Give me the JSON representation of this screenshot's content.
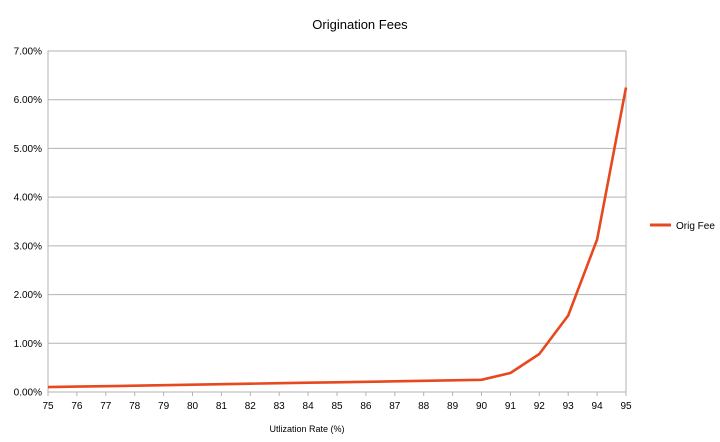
{
  "chart_data": {
    "type": "line",
    "title": "Origination Fees",
    "xlabel": "Utlization Rate (%)",
    "ylabel": "",
    "categories": [
      "75",
      "76",
      "77",
      "78",
      "79",
      "80",
      "81",
      "82",
      "83",
      "84",
      "85",
      "86",
      "87",
      "88",
      "89",
      "90",
      "91",
      "92",
      "93",
      "94",
      "95"
    ],
    "yticks": [
      "0.00%",
      "1.00%",
      "2.00%",
      "3.00%",
      "4.00%",
      "5.00%",
      "6.00%",
      "7.00%"
    ],
    "ylim": [
      0,
      7
    ],
    "grid": true,
    "legend_position": "right",
    "series": [
      {
        "name": "Orig Fee",
        "color": "#e8481e",
        "values": [
          0.1,
          0.11,
          0.12,
          0.13,
          0.14,
          0.15,
          0.16,
          0.17,
          0.18,
          0.19,
          0.2,
          0.21,
          0.22,
          0.23,
          0.24,
          0.25,
          0.39,
          0.78,
          1.57,
          3.13,
          6.25
        ]
      }
    ]
  }
}
